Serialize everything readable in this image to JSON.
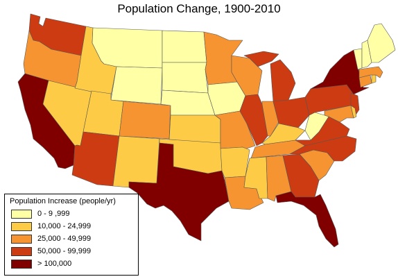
{
  "title": "Population Change, 1900-2010",
  "legend": {
    "title": "Population Increase (people/yr)",
    "classes": [
      {
        "label": "0 - 9 ,999",
        "color": "#ffffa6"
      },
      {
        "label": "10,000 - 24,999",
        "color": "#fdcb45"
      },
      {
        "label": "25,000 - 49,999",
        "color": "#f69431"
      },
      {
        "label": "50,000 - 99,999",
        "color": "#cd3b12"
      },
      {
        "label": "> 100,000",
        "color": "#800000"
      }
    ]
  },
  "states": [
    {
      "name": "Washington",
      "class": 3
    },
    {
      "name": "Oregon",
      "class": 2
    },
    {
      "name": "California",
      "class": 4
    },
    {
      "name": "Nevada",
      "class": 1
    },
    {
      "name": "Idaho",
      "class": 1
    },
    {
      "name": "Montana",
      "class": 0
    },
    {
      "name": "Wyoming",
      "class": 0
    },
    {
      "name": "Utah",
      "class": 1
    },
    {
      "name": "Arizona",
      "class": 3
    },
    {
      "name": "Colorado",
      "class": 2
    },
    {
      "name": "New Mexico",
      "class": 1
    },
    {
      "name": "North Dakota",
      "class": 0
    },
    {
      "name": "South Dakota",
      "class": 0
    },
    {
      "name": "Nebraska",
      "class": 0
    },
    {
      "name": "Kansas",
      "class": 1
    },
    {
      "name": "Oklahoma",
      "class": 1
    },
    {
      "name": "Texas",
      "class": 4
    },
    {
      "name": "Minnesota",
      "class": 2
    },
    {
      "name": "Iowa",
      "class": 0
    },
    {
      "name": "Missouri",
      "class": 2
    },
    {
      "name": "Arkansas",
      "class": 1
    },
    {
      "name": "Louisiana",
      "class": 2
    },
    {
      "name": "Wisconsin",
      "class": 2
    },
    {
      "name": "Illinois",
      "class": 3
    },
    {
      "name": "Michigan",
      "class": 3
    },
    {
      "name": "Indiana",
      "class": 2
    },
    {
      "name": "Ohio",
      "class": 3
    },
    {
      "name": "Kentucky",
      "class": 1
    },
    {
      "name": "Tennessee",
      "class": 2
    },
    {
      "name": "Mississippi",
      "class": 1
    },
    {
      "name": "Alabama",
      "class": 2
    },
    {
      "name": "Georgia",
      "class": 3
    },
    {
      "name": "Florida",
      "class": 4
    },
    {
      "name": "South Carolina",
      "class": 2
    },
    {
      "name": "North Carolina",
      "class": 3
    },
    {
      "name": "Virginia",
      "class": 3
    },
    {
      "name": "West Virginia",
      "class": 0
    },
    {
      "name": "Pennsylvania",
      "class": 3
    },
    {
      "name": "New York",
      "class": 4
    },
    {
      "name": "New Jersey",
      "class": 3
    },
    {
      "name": "Maryland",
      "class": 2
    },
    {
      "name": "Delaware",
      "class": 1
    },
    {
      "name": "Connecticut",
      "class": 2
    },
    {
      "name": "Massachusetts",
      "class": 2
    },
    {
      "name": "Rhode Island",
      "class": 1
    },
    {
      "name": "Vermont",
      "class": 0
    },
    {
      "name": "New Hampshire",
      "class": 0
    },
    {
      "name": "Maine",
      "class": 0
    }
  ]
}
